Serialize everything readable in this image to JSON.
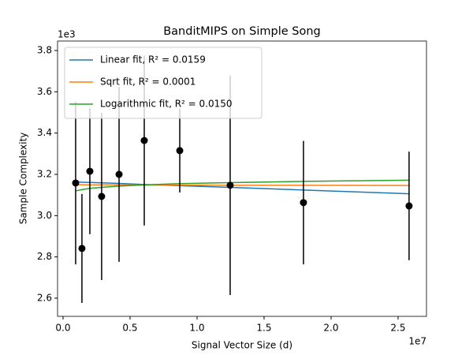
{
  "chart_data": {
    "type": "errorbar-fit",
    "title": "BanditMIPS on Simple Song",
    "x_label": "Signal Vector Size (d)",
    "y_label": "Sample Complexity",
    "x_offset": "1e7",
    "y_offset": "1e3",
    "x": [
      0.094,
      0.141,
      0.2,
      0.288,
      0.418,
      0.606,
      0.871,
      1.247,
      1.794,
      2.582
    ],
    "points": {
      "color": "#000000",
      "values": [
        3.158,
        2.841,
        3.215,
        3.093,
        3.2,
        3.364,
        3.315,
        3.147,
        3.063,
        3.047
      ],
      "errors": [
        0.394,
        0.264,
        0.305,
        0.405,
        0.424,
        0.412,
        0.203,
        0.532,
        0.299,
        0.263
      ]
    },
    "series": [
      {
        "name": "Linear fit,  R² = 0.0159",
        "color": "#1f77b4",
        "values": [
          3.163,
          3.162,
          3.161,
          3.159,
          3.156,
          3.151,
          3.145,
          3.137,
          3.124,
          3.106
        ]
      },
      {
        "name": "Sqrt fit,  R² = 0.0001",
        "color": "#ff7f0e",
        "values": [
          3.15,
          3.15,
          3.149,
          3.149,
          3.149,
          3.148,
          3.148,
          3.147,
          3.147,
          3.146
        ]
      },
      {
        "name": "Logarithmic fit,  R² = 0.0150",
        "color": "#2ca02c",
        "values": [
          3.12,
          3.126,
          3.132,
          3.137,
          3.143,
          3.149,
          3.155,
          3.16,
          3.166,
          3.172
        ]
      }
    ],
    "xlim": [
      -0.041,
      2.712
    ],
    "ylim": [
      2.512,
      3.846
    ],
    "xticks": [
      {
        "value": 0,
        "label": "0.0"
      },
      0.5,
      {
        "value": 1,
        "label": "1.0"
      },
      1.5,
      {
        "value": 2,
        "label": "2.0"
      },
      2.5
    ],
    "yticks": [
      2.6,
      2.8,
      {
        "value": 3,
        "label": "3.0"
      },
      3.2,
      3.4,
      3.6,
      3.8
    ],
    "legend": "upper left"
  }
}
